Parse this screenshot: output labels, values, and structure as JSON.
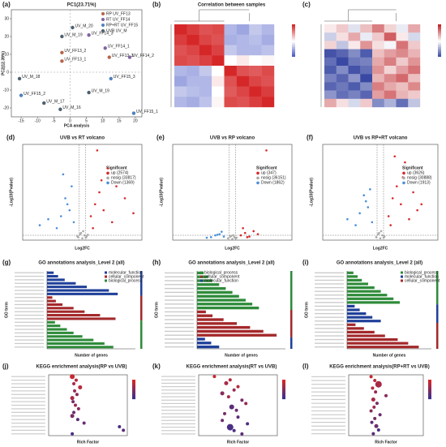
{
  "chart_data": [
    {
      "type": "scatter",
      "panel": "(a)",
      "title": "PC1(23.71%)",
      "xlabel": "PCA analysis",
      "ylabel": "PC2(12.39%)",
      "xlim": [
        -18,
        22
      ],
      "xticks": [
        -15,
        -10,
        -5,
        0,
        5,
        10,
        15,
        20
      ],
      "ylim": [
        -25,
        35
      ],
      "yticks": [
        -20,
        -10,
        0,
        10,
        20,
        30
      ],
      "legend": "top-right",
      "series": [
        {
          "name": "RP UV_FF13",
          "color": "#b5654a",
          "x": [
            -2.5,
            -2.5,
            12
          ],
          "values": [
            6.2,
            11,
            8.4
          ],
          "labels": [
            "UV_FF13_1",
            "UV_FF13_2",
            "UV_FF13_3"
          ]
        },
        {
          "name": "RT UV_FF14",
          "color": "#8064a2",
          "x": [
            10.75,
            18.25,
            5.75
          ],
          "values": [
            13.5,
            8.4,
            20.8
          ],
          "labels": [
            "UV_FF14_1",
            "UV_FF14_2",
            "UV_FF14_3"
          ]
        },
        {
          "name": "RP+RT UV_FF15",
          "color": "#4f81bd",
          "x": [
            19.5,
            -15,
            12.5
          ],
          "values": [
            -23,
            -13,
            -3.6
          ],
          "labels": [
            "UV_FF15_1",
            "UV_FF15_2",
            "UV_FF15_3"
          ]
        },
        {
          "name": "UVB UV_M",
          "color": "#4d6070",
          "x": [
            -3,
            -8,
            -15.5,
            5.75,
            -2.5,
            0.75
          ],
          "values": [
            -20.8,
            -17.3,
            -3.6,
            -11.4,
            20,
            25
          ],
          "labels": [
            "UV_M_16",
            "UV_M_17",
            "UV_M_18",
            "UV_M_19",
            "UV_M_19",
            "UV_M_20"
          ]
        }
      ]
    },
    {
      "type": "heatmap",
      "panel": "(b)",
      "title": "Correlation between samples",
      "zlim": [
        0,
        1
      ],
      "colors": [
        "#3b4cc0",
        "#ffffff",
        "#d62728"
      ],
      "values": [
        [
          1,
          0.95,
          0.9,
          0.92,
          0.3,
          0.25,
          0.35,
          0.3
        ],
        [
          0.95,
          1,
          0.93,
          0.9,
          0.28,
          0.3,
          0.32,
          0.27
        ],
        [
          0.9,
          0.93,
          1,
          0.94,
          0.35,
          0.3,
          0.3,
          0.33
        ],
        [
          0.92,
          0.9,
          0.94,
          1,
          0.5,
          0.55,
          0.5,
          0.52
        ],
        [
          0.3,
          0.28,
          0.35,
          0.5,
          1,
          0.9,
          0.88,
          0.92
        ],
        [
          0.25,
          0.3,
          0.3,
          0.55,
          0.9,
          1,
          0.93,
          0.9
        ],
        [
          0.35,
          0.32,
          0.3,
          0.5,
          0.88,
          0.93,
          1,
          0.95
        ],
        [
          0.3,
          0.27,
          0.33,
          0.52,
          0.92,
          0.9,
          0.95,
          1
        ]
      ]
    },
    {
      "type": "heatmap",
      "panel": "(c)",
      "zlim": [
        -2,
        2
      ],
      "colors": [
        "#2f3f9e",
        "#ffffff",
        "#c0282d"
      ],
      "values": [
        [
          0.2,
          0.5,
          -0.3,
          0.6,
          1.2,
          0.4,
          -0.2,
          0.8
        ],
        [
          -0.5,
          0.3,
          0.8,
          -0.2,
          0.5,
          1.5,
          0.2,
          -0.4
        ],
        [
          0.4,
          -0.6,
          0.2,
          1,
          0.3,
          -0.1,
          1.3,
          0.5
        ],
        [
          -1.8,
          -1.6,
          -1.2,
          -1.7,
          0.6,
          0.9,
          1.1,
          0.7
        ],
        [
          -1.5,
          -1.9,
          -1.4,
          -1.3,
          0.8,
          1.2,
          0.5,
          1
        ],
        [
          -1.7,
          -1.2,
          -1.8,
          -1.5,
          1,
          0.4,
          0.9,
          1.3
        ],
        [
          -1.3,
          -1.6,
          -1.1,
          -1.9,
          0.7,
          1.1,
          1.4,
          0.6
        ],
        [
          -1.6,
          -1.4,
          -1.7,
          -1.2,
          1.2,
          0.8,
          0.6,
          1.1
        ],
        [
          -1.1,
          -1.5,
          -1.3,
          -1.6,
          0.9,
          1.3,
          0.7,
          0.5
        ],
        [
          0.8,
          0.3,
          -0.4,
          0.5,
          -1.2,
          -0.8,
          -1.5,
          -0.6
        ]
      ]
    },
    {
      "type": "volcano",
      "panel": "(d)",
      "title": "UVB vs RT volcano",
      "xlabel": "Log2FC",
      "ylabel": "-Log10(Pvalue)",
      "legend_title": "Significant",
      "xlim": [
        -14,
        14
      ],
      "ylim": [
        0,
        160
      ],
      "series": [
        {
          "name": "up (2574)",
          "color": "#d62728",
          "x": [
            2,
            3,
            4,
            5,
            6,
            8,
            3.5,
            2.5,
            7,
            10,
            4.5,
            12
          ],
          "values": [
            40,
            60,
            80,
            50,
            120,
            90,
            150,
            20,
            30,
            70,
            100,
            45
          ]
        },
        {
          "name": "nosig (33817)",
          "color": "#aaaaaa",
          "x": [
            -1,
            -0.5,
            0,
            0.5,
            1,
            0.2,
            -0.3,
            0.8,
            -1.2,
            1.3
          ],
          "values": [
            5,
            10,
            3,
            8,
            6,
            15,
            12,
            4,
            7,
            9
          ]
        },
        {
          "name": "Down (1369)",
          "color": "#4a90d9",
          "x": [
            -2,
            -3,
            -4,
            -5,
            -6,
            -2.5,
            -3.5,
            -8,
            -4.5,
            -10
          ],
          "values": [
            30,
            50,
            70,
            40,
            20,
            90,
            60,
            35,
            110,
            25
          ]
        }
      ]
    },
    {
      "type": "volcano",
      "panel": "(e)",
      "title": "UVB vs RP volcano",
      "xlabel": "Log2FC",
      "ylabel": "-Log10(Pvalue)",
      "legend_title": "Significant",
      "xlim": [
        -14,
        14
      ],
      "ylim": [
        0,
        160
      ],
      "series": [
        {
          "name": "up (347)",
          "color": "#d62728",
          "x": [
            2,
            3,
            4,
            5,
            6,
            2.5,
            3.5,
            8
          ],
          "values": [
            8,
            12,
            6,
            15,
            10,
            20,
            5,
            150
          ]
        },
        {
          "name": "nosig (36151)",
          "color": "#aaaaaa",
          "x": [
            -1,
            -0.5,
            0,
            0.5,
            1,
            0.2,
            -0.3,
            0.8
          ],
          "values": [
            3,
            6,
            2,
            5,
            4,
            8,
            7,
            3
          ]
        },
        {
          "name": "Down (1862)",
          "color": "#4a90d9",
          "x": [
            -2,
            -3,
            -4,
            -5,
            -2.5,
            -3.5,
            -6
          ],
          "values": [
            6,
            10,
            8,
            5,
            14,
            9,
            4
          ]
        }
      ]
    },
    {
      "type": "volcano",
      "panel": "(f)",
      "title": "UVB vs RP+RT volcano",
      "xlabel": "Log2FC",
      "ylabel": "-Log10(Pvalue)",
      "legend_title": "Significant",
      "xlim": [
        -14,
        14
      ],
      "ylim": [
        0,
        160
      ],
      "series": [
        {
          "name": "up (3626)",
          "color": "#d62728",
          "x": [
            2,
            3,
            4,
            5,
            6,
            8,
            3.5,
            2.5,
            7,
            10,
            5.5,
            9
          ],
          "values": [
            40,
            70,
            90,
            60,
            130,
            80,
            140,
            25,
            35,
            60,
            105,
            50
          ]
        },
        {
          "name": "nosig (30888)",
          "color": "#aaaaaa",
          "x": [
            -1,
            -0.5,
            0,
            0.5,
            1,
            0.2,
            -0.3,
            0.8
          ],
          "values": [
            5,
            10,
            3,
            8,
            6,
            15,
            12,
            4
          ]
        },
        {
          "name": "Down (1913)",
          "color": "#4a90d9",
          "x": [
            -2,
            -3,
            -4,
            -5,
            -6,
            -2.5,
            -3.5,
            -8
          ],
          "values": [
            30,
            55,
            75,
            45,
            25,
            85,
            65,
            35
          ]
        }
      ]
    },
    {
      "type": "barh",
      "panel": "(g)",
      "title": "GO annotations analysis_Level 2 (all)",
      "xlabel": "Number of genes",
      "ylabel": "GO term",
      "xlim": [
        0,
        20000
      ],
      "legend": "top-right",
      "series": [
        {
          "name": "molecular_function",
          "color": "#1f3f99",
          "values": [
            1500,
            2500,
            4000,
            6500,
            9000,
            14000,
            16000
          ]
        },
        {
          "name": "cellular_component",
          "color": "#a3282a",
          "values": [
            1200,
            2000,
            3500,
            6000,
            8500,
            12000,
            15500
          ]
        },
        {
          "name": "biological_process",
          "color": "#2e8b3a",
          "values": [
            1800,
            3000,
            4500,
            6000,
            8000,
            10500,
            13000,
            15000
          ]
        }
      ]
    },
    {
      "type": "barh",
      "panel": "(h)",
      "title": "GO annotations analysis_Level 2 (all)",
      "xlabel": "Number of genes",
      "ylabel": "GO term",
      "xlim": [
        0,
        20000
      ],
      "legend": "top-left",
      "series": [
        {
          "name": "biological_process",
          "color": "#2e8b3a",
          "values": [
            1500,
            2500,
            3500,
            5000,
            6500,
            8000,
            9500,
            11000,
            12500,
            14000
          ]
        },
        {
          "name": "cellular_component",
          "color": "#a3282a",
          "values": [
            2000,
            3500,
            6000,
            9000,
            12000,
            15000,
            18000
          ]
        },
        {
          "name": "molecular_function",
          "color": "#1f3f99",
          "values": [
            1800,
            3200,
            5000
          ]
        }
      ]
    },
    {
      "type": "barh",
      "panel": "(i)",
      "title": "GO annotations analysis_Level 2 (all)",
      "xlabel": "Number of genes",
      "ylabel": "GO term",
      "xlim": [
        0,
        20000
      ],
      "legend": "top-right",
      "series": [
        {
          "name": "biological_process",
          "color": "#2e8b3a",
          "values": [
            1500,
            2500,
            3500,
            5000,
            6500,
            8000,
            9500,
            11000,
            12500
          ]
        },
        {
          "name": "molecular_function",
          "color": "#1f3f99",
          "values": [
            1800,
            3000,
            4500,
            6000,
            8000
          ]
        },
        {
          "name": "cellular_component",
          "color": "#a3282a",
          "values": [
            2000,
            4000,
            6500,
            9000,
            12000,
            14500,
            17000
          ]
        }
      ]
    },
    {
      "type": "dot",
      "panel": "(j)",
      "title": "KEGG enrichment analysis(RP vs UVB)",
      "xlabel": "Rich Factor",
      "xlim": [
        0,
        1
      ],
      "colors": [
        "#d62728",
        "#3b2f8f"
      ],
      "values": [
        0.3,
        0.35,
        0.32,
        0.4,
        0.33,
        0.36,
        0.3,
        0.31,
        0.34,
        0.38,
        0.32,
        0.3,
        0.37,
        0.45,
        0.9,
        0.95,
        0.3
      ],
      "sizes": [
        3,
        2,
        2,
        2.5,
        2,
        2,
        2.5,
        2,
        2,
        2,
        2,
        2.5,
        2,
        2,
        2,
        2,
        2
      ],
      "pvalues": [
        0.1,
        0.2,
        0.3,
        0.2,
        0.4,
        0.5,
        0.3,
        0.6,
        0.4,
        0.5,
        0.7,
        0.6,
        0.8,
        0.7,
        0.9,
        0.8,
        0.9
      ]
    },
    {
      "type": "dot",
      "panel": "(k)",
      "title": "KEGG enrichment analysis(RT vs UVB)",
      "xlabel": "Rich Factor",
      "xlim": [
        0,
        1
      ],
      "colors": [
        "#d62728",
        "#3b2f8f"
      ],
      "values": [
        0.2,
        0.4,
        0.35,
        0.5,
        0.45,
        0.3,
        0.38,
        0.55,
        0.6,
        0.42,
        0.48,
        0.33,
        0.5,
        0.3,
        0.62,
        0.4,
        0.45,
        0.55
      ],
      "sizes": [
        2,
        2,
        2.5,
        2,
        2,
        2.5,
        2,
        2,
        2,
        3,
        2,
        2,
        2,
        2,
        2,
        4,
        2,
        2
      ],
      "pvalues": [
        0.1,
        0.2,
        0.3,
        0.2,
        0.4,
        0.5,
        0.3,
        0.6,
        0.4,
        0.8,
        0.7,
        0.6,
        0.8,
        0.7,
        0.9,
        0.9,
        0.9,
        0.8
      ]
    },
    {
      "type": "dot",
      "panel": "(l)",
      "title": "KEGG enrichment analysis(RP+RT vs UVB)",
      "xlabel": "Rich Factor",
      "xlim": [
        0,
        1
      ],
      "colors": [
        "#d62728",
        "#3b2f8f"
      ],
      "values": [
        0.3,
        0.35,
        0.4,
        0.32,
        0.36,
        0.5,
        0.33,
        0.38,
        0.34,
        0.3,
        0.42,
        0.35,
        0.31,
        0.37,
        0.4,
        0.33
      ],
      "sizes": [
        2,
        2,
        4,
        2,
        2,
        2,
        2.5,
        2,
        2,
        2,
        2,
        2,
        2,
        2.5,
        2,
        2
      ],
      "pvalues": [
        0.1,
        0.2,
        0.3,
        0.2,
        0.4,
        0.5,
        0.3,
        0.6,
        0.4,
        0.5,
        0.7,
        0.6,
        0.8,
        0.7,
        0.9,
        0.8
      ]
    }
  ]
}
